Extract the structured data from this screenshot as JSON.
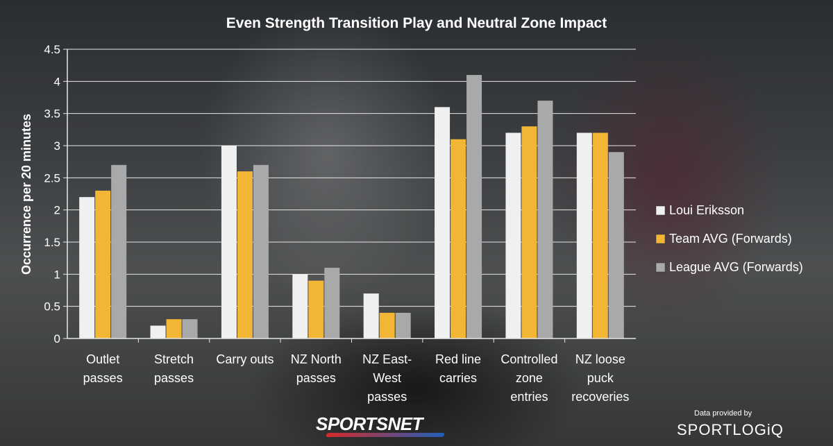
{
  "chart_data": {
    "type": "bar",
    "title": "Even Strength Transition Play and Neutral Zone Impact",
    "ylabel": "Occurrence per 20 minutes",
    "xlabel": "",
    "ylim": [
      0,
      4.5
    ],
    "yticks": [
      "0",
      "0.5",
      "1",
      "1.5",
      "2",
      "2.5",
      "3",
      "3.5",
      "4",
      "4.5"
    ],
    "ytick_values": [
      0,
      0.5,
      1,
      1.5,
      2,
      2.5,
      3,
      3.5,
      4,
      4.5
    ],
    "grid": true,
    "legend_position": "right",
    "categories": [
      [
        "Outlet",
        "passes"
      ],
      [
        "Stretch",
        "passes"
      ],
      [
        "Carry outs"
      ],
      [
        "NZ North",
        "passes"
      ],
      [
        "NZ East-",
        "West",
        "passes"
      ],
      [
        "Red line",
        "carries"
      ],
      [
        "Controlled",
        "zone",
        "entries"
      ],
      [
        "NZ loose",
        "puck",
        "recoveries"
      ]
    ],
    "series": [
      {
        "name": "Loui Eriksson",
        "color": "#f0f0f0",
        "values": [
          2.2,
          0.2,
          3.0,
          1.0,
          0.7,
          3.6,
          3.2,
          3.2
        ]
      },
      {
        "name": "Team AVG (Forwards)",
        "color": "#f2b634",
        "values": [
          2.3,
          0.3,
          2.6,
          0.9,
          0.4,
          3.1,
          3.3,
          3.2
        ]
      },
      {
        "name": "League AVG (Forwards)",
        "color": "#a9a9a9",
        "values": [
          2.7,
          0.3,
          2.7,
          1.1,
          0.4,
          4.1,
          3.7,
          2.9
        ]
      }
    ]
  },
  "branding": {
    "sportsnet_logo": "SPORTSNET",
    "data_credit": "Data provided by",
    "sportlogiq_logo": "SPORTLOGiQ"
  }
}
